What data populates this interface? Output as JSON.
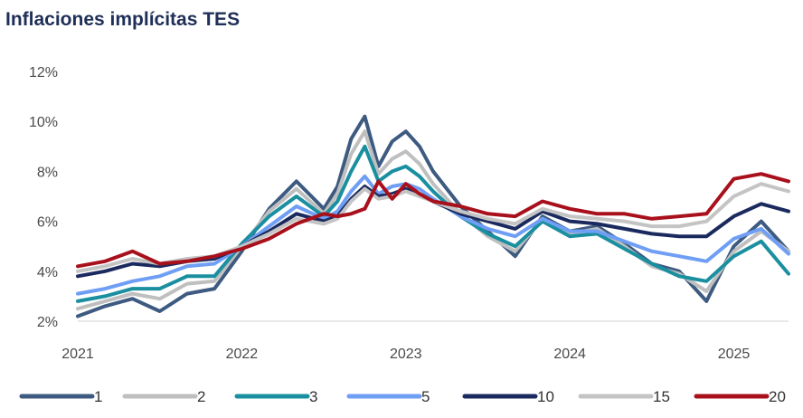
{
  "chart_data": {
    "type": "line",
    "title": "Inflaciones implícitas TES",
    "xlabel": "",
    "ylabel": "",
    "y_unit": "%",
    "ylim": [
      2,
      12
    ],
    "y_ticks": [
      "2%",
      "4%",
      "6%",
      "8%",
      "10%",
      "12%"
    ],
    "x_ticks": [
      "2021",
      "2022",
      "2023",
      "2024",
      "2025"
    ],
    "x_range": [
      "2021-01",
      "2025-05"
    ],
    "grid": false,
    "legend_position": "bottom",
    "series": [
      {
        "name": "1",
        "color": "#3d5a80",
        "x": [
          "2021-01",
          "2021-03",
          "2021-05",
          "2021-07",
          "2021-09",
          "2021-11",
          "2022-01",
          "2022-03",
          "2022-05",
          "2022-07",
          "2022-08",
          "2022-09",
          "2022-10",
          "2022-11",
          "2022-12",
          "2023-01",
          "2023-02",
          "2023-03",
          "2023-05",
          "2023-07",
          "2023-09",
          "2023-11",
          "2024-01",
          "2024-03",
          "2024-05",
          "2024-07",
          "2024-09",
          "2024-11",
          "2025-01",
          "2025-03",
          "2025-05"
        ],
        "values": [
          2.2,
          2.6,
          2.9,
          2.4,
          3.1,
          3.3,
          4.8,
          6.5,
          7.6,
          6.5,
          7.4,
          9.3,
          10.2,
          8.2,
          9.2,
          9.6,
          9.0,
          8.0,
          6.6,
          5.6,
          4.6,
          6.2,
          5.6,
          5.8,
          5.1,
          4.3,
          4.0,
          2.8,
          5.0,
          6.0,
          4.8
        ]
      },
      {
        "name": "2",
        "color": "#bfbfbf",
        "x": [
          "2021-01",
          "2021-03",
          "2021-05",
          "2021-07",
          "2021-09",
          "2021-11",
          "2022-01",
          "2022-03",
          "2022-05",
          "2022-07",
          "2022-08",
          "2022-09",
          "2022-10",
          "2022-11",
          "2022-12",
          "2023-01",
          "2023-02",
          "2023-03",
          "2023-05",
          "2023-07",
          "2023-09",
          "2023-11",
          "2024-01",
          "2024-03",
          "2024-05",
          "2024-07",
          "2024-09",
          "2024-11",
          "2025-01",
          "2025-03",
          "2025-05"
        ],
        "values": [
          2.5,
          2.8,
          3.1,
          2.9,
          3.5,
          3.6,
          5.0,
          6.4,
          7.3,
          6.3,
          7.1,
          8.7,
          9.6,
          7.9,
          8.5,
          8.8,
          8.3,
          7.5,
          6.3,
          5.4,
          4.8,
          6.1,
          5.5,
          5.7,
          5.0,
          4.2,
          3.9,
          3.2,
          4.8,
          5.6,
          4.8
        ]
      },
      {
        "name": "3",
        "color": "#1a8fa0",
        "x": [
          "2021-01",
          "2021-03",
          "2021-05",
          "2021-07",
          "2021-09",
          "2021-11",
          "2022-01",
          "2022-03",
          "2022-05",
          "2022-07",
          "2022-08",
          "2022-09",
          "2022-10",
          "2022-11",
          "2022-12",
          "2023-01",
          "2023-02",
          "2023-03",
          "2023-05",
          "2023-07",
          "2023-09",
          "2023-11",
          "2024-01",
          "2024-03",
          "2024-05",
          "2024-07",
          "2024-09",
          "2024-11",
          "2025-01",
          "2025-03",
          "2025-05"
        ],
        "values": [
          2.8,
          3.0,
          3.3,
          3.3,
          3.8,
          3.8,
          5.1,
          6.2,
          7.0,
          6.2,
          6.8,
          8.0,
          9.0,
          7.6,
          8.0,
          8.2,
          7.8,
          7.2,
          6.2,
          5.5,
          5.0,
          6.0,
          5.4,
          5.5,
          4.9,
          4.3,
          3.8,
          3.6,
          4.6,
          5.2,
          3.9
        ]
      },
      {
        "name": "5",
        "color": "#6f9ef5",
        "x": [
          "2021-01",
          "2021-03",
          "2021-05",
          "2021-07",
          "2021-09",
          "2021-11",
          "2022-01",
          "2022-03",
          "2022-05",
          "2022-07",
          "2022-08",
          "2022-09",
          "2022-10",
          "2022-11",
          "2022-12",
          "2023-01",
          "2023-02",
          "2023-03",
          "2023-05",
          "2023-07",
          "2023-09",
          "2023-11",
          "2024-01",
          "2024-03",
          "2024-05",
          "2024-07",
          "2024-09",
          "2024-11",
          "2025-01",
          "2025-03",
          "2025-05"
        ],
        "values": [
          3.1,
          3.3,
          3.6,
          3.8,
          4.2,
          4.3,
          5.0,
          5.8,
          6.6,
          6.1,
          6.4,
          7.2,
          7.8,
          7.1,
          7.4,
          7.5,
          7.3,
          6.9,
          6.2,
          5.7,
          5.4,
          6.1,
          5.6,
          5.6,
          5.2,
          4.8,
          4.6,
          4.4,
          5.3,
          5.7,
          4.7
        ]
      },
      {
        "name": "10",
        "color": "#1b2a5e",
        "x": [
          "2021-01",
          "2021-03",
          "2021-05",
          "2021-07",
          "2021-09",
          "2021-11",
          "2022-01",
          "2022-03",
          "2022-05",
          "2022-07",
          "2022-08",
          "2022-09",
          "2022-10",
          "2022-11",
          "2022-12",
          "2023-01",
          "2023-02",
          "2023-03",
          "2023-05",
          "2023-07",
          "2023-09",
          "2023-11",
          "2024-01",
          "2024-03",
          "2024-05",
          "2024-07",
          "2024-09",
          "2024-11",
          "2025-01",
          "2025-03",
          "2025-05"
        ],
        "values": [
          3.8,
          4.0,
          4.3,
          4.2,
          4.4,
          4.5,
          5.0,
          5.6,
          6.3,
          6.0,
          6.2,
          6.9,
          7.4,
          7.0,
          7.1,
          7.3,
          7.1,
          6.8,
          6.3,
          6.0,
          5.7,
          6.4,
          6.0,
          5.9,
          5.7,
          5.5,
          5.4,
          5.4,
          6.2,
          6.7,
          6.4
        ]
      },
      {
        "name": "15",
        "color": "#c4c4c4",
        "x": [
          "2021-01",
          "2021-03",
          "2021-05",
          "2021-07",
          "2021-09",
          "2021-11",
          "2022-01",
          "2022-03",
          "2022-05",
          "2022-07",
          "2022-08",
          "2022-09",
          "2022-10",
          "2022-11",
          "2022-12",
          "2023-01",
          "2023-02",
          "2023-03",
          "2023-05",
          "2023-07",
          "2023-09",
          "2023-11",
          "2024-01",
          "2024-03",
          "2024-05",
          "2024-07",
          "2024-09",
          "2024-11",
          "2025-01",
          "2025-03",
          "2025-05"
        ],
        "values": [
          4.0,
          4.2,
          4.5,
          4.3,
          4.5,
          4.6,
          5.0,
          5.5,
          6.1,
          5.9,
          6.1,
          6.8,
          7.3,
          6.9,
          7.0,
          7.2,
          7.0,
          6.8,
          6.4,
          6.1,
          5.9,
          6.5,
          6.2,
          6.1,
          6.0,
          5.8,
          5.8,
          6.0,
          7.0,
          7.5,
          7.2
        ]
      },
      {
        "name": "20",
        "color": "#a8101c",
        "x": [
          "2021-01",
          "2021-03",
          "2021-05",
          "2021-07",
          "2021-09",
          "2021-11",
          "2022-01",
          "2022-03",
          "2022-05",
          "2022-07",
          "2022-08",
          "2022-09",
          "2022-10",
          "2022-11",
          "2022-12",
          "2023-01",
          "2023-02",
          "2023-03",
          "2023-05",
          "2023-07",
          "2023-09",
          "2023-11",
          "2024-01",
          "2024-03",
          "2024-05",
          "2024-07",
          "2024-09",
          "2024-11",
          "2025-01",
          "2025-03",
          "2025-05"
        ],
        "values": [
          4.2,
          4.4,
          4.8,
          4.3,
          4.4,
          4.6,
          4.9,
          5.3,
          5.9,
          6.3,
          6.2,
          6.3,
          6.5,
          7.6,
          6.9,
          7.5,
          7.1,
          6.8,
          6.6,
          6.3,
          6.2,
          6.8,
          6.5,
          6.3,
          6.3,
          6.1,
          6.2,
          6.3,
          7.7,
          7.9,
          7.6
        ]
      }
    ]
  }
}
